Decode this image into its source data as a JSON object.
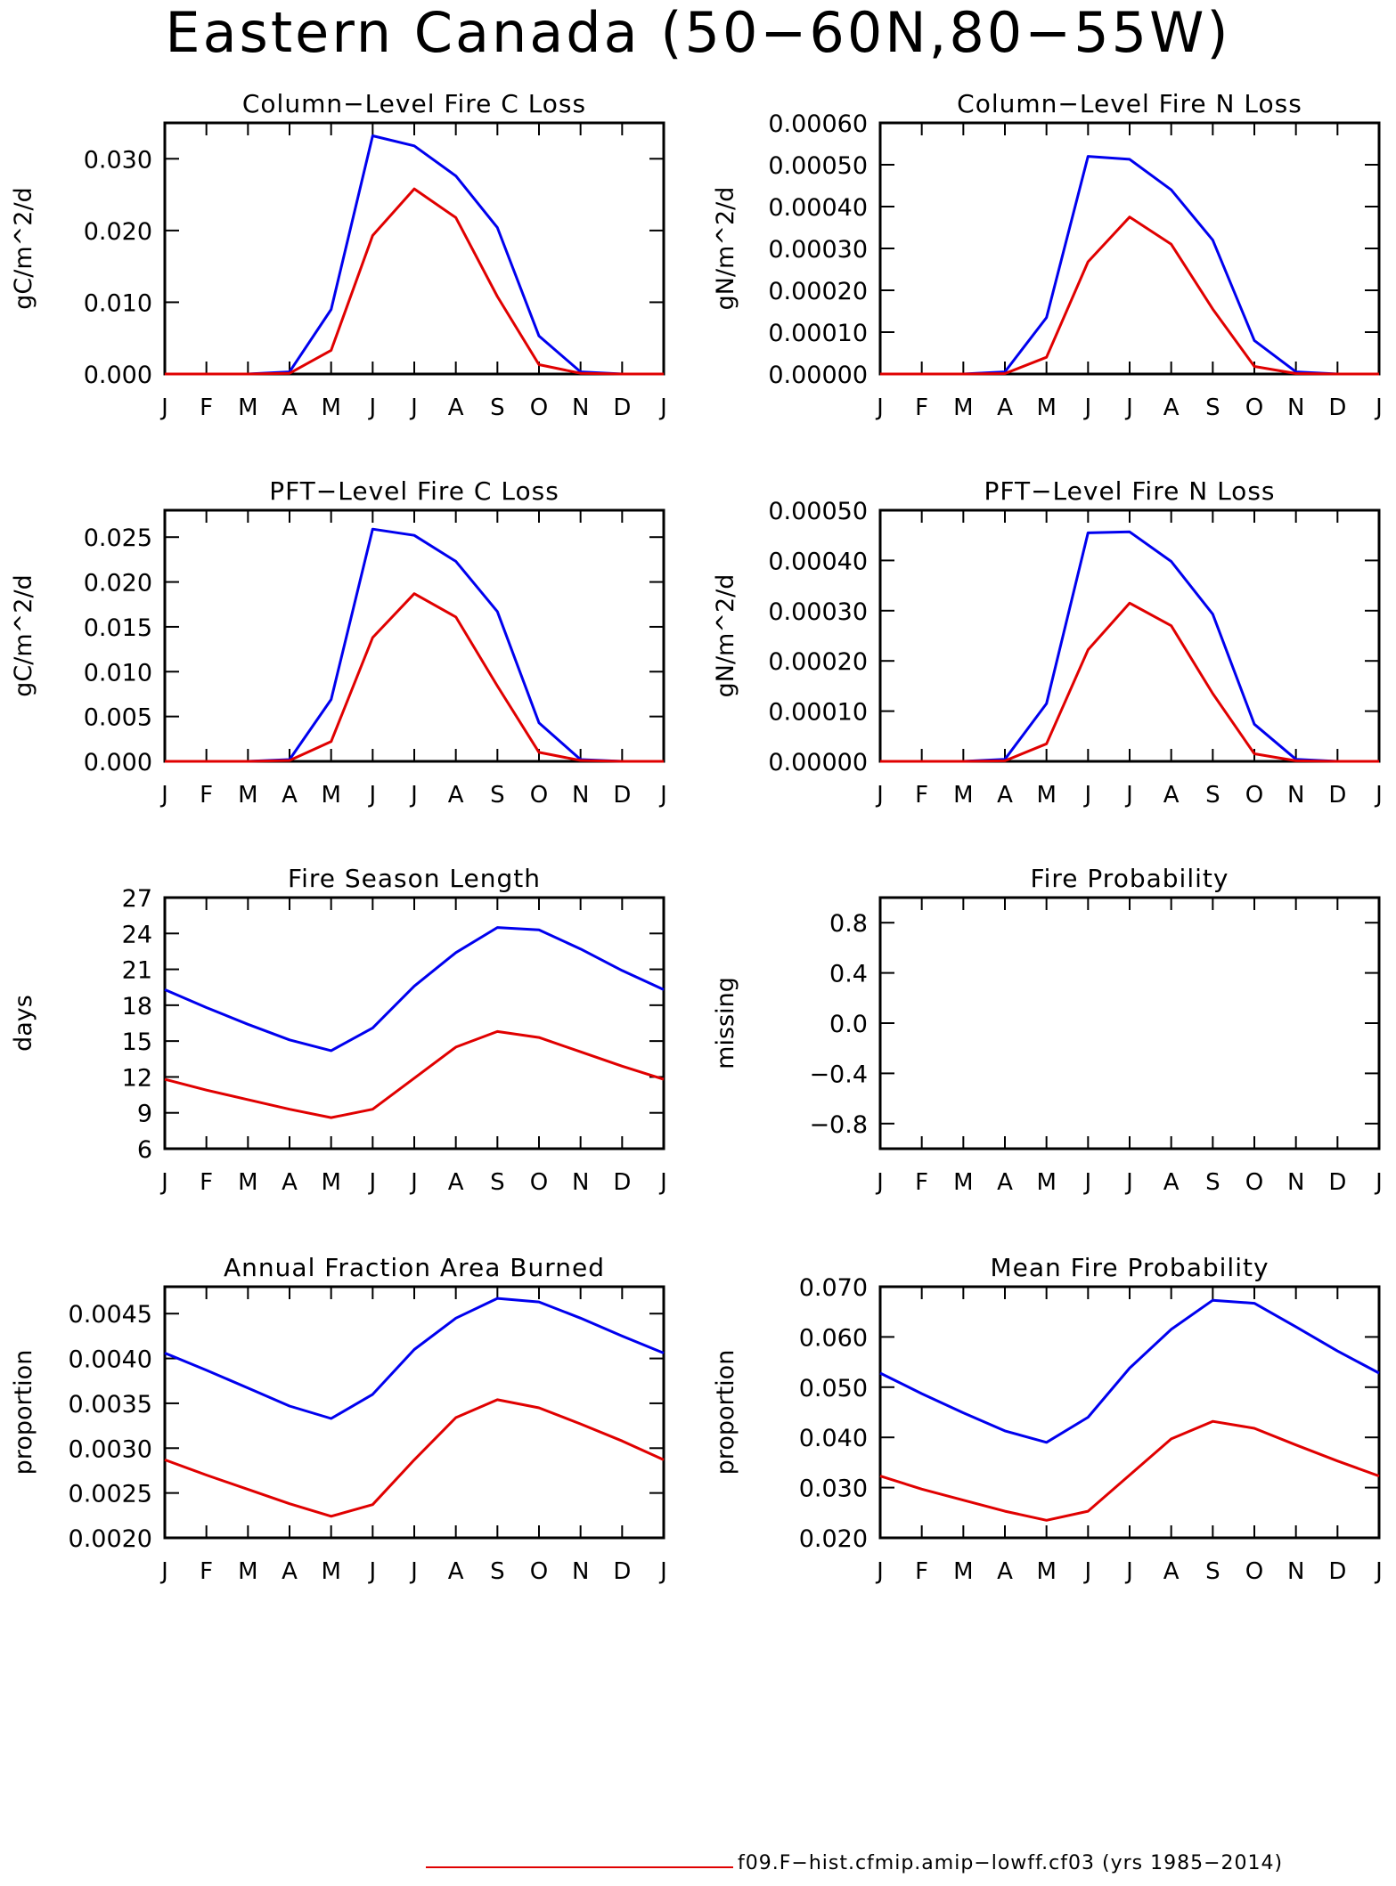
{
  "title": "Eastern Canada (50−60N,80−55W)",
  "legend": {
    "label": "f09.F−hist.cfmip.amip−lowff.cf03 (yrs 1985−2014)",
    "color": "#e00000"
  },
  "colors": {
    "series_blue": "#0000ee",
    "series_red": "#e00000"
  },
  "chart_data": [
    {
      "type": "line",
      "title": "Column−Level Fire C Loss",
      "ylabel": "gC/m^2/d",
      "categories": [
        "J",
        "F",
        "M",
        "A",
        "M",
        "J",
        "J",
        "A",
        "S",
        "O",
        "N",
        "D",
        "J"
      ],
      "ylim": [
        0,
        0.035
      ],
      "yticks": [
        "0.000",
        "0.010",
        "0.020",
        "0.030"
      ],
      "series": [
        {
          "values": [
            0,
            0,
            0,
            0.0003,
            0.009,
            0.0332,
            0.0318,
            0.0276,
            0.0204,
            0.0053,
            0.0003,
            0,
            0
          ]
        },
        {
          "values": [
            0,
            0,
            0,
            0.0001,
            0.0033,
            0.0193,
            0.0258,
            0.0218,
            0.0108,
            0.0013,
            0.0001,
            0,
            0
          ]
        }
      ]
    },
    {
      "type": "line",
      "title": "Column−Level Fire N Loss",
      "ylabel": "gN/m^2/d",
      "categories": [
        "J",
        "F",
        "M",
        "A",
        "M",
        "J",
        "J",
        "A",
        "S",
        "O",
        "N",
        "D",
        "J"
      ],
      "ylim": [
        0,
        0.0006
      ],
      "yticks": [
        "0.00000",
        "0.00010",
        "0.00020",
        "0.00030",
        "0.00040",
        "0.00050",
        "0.00060"
      ],
      "series": [
        {
          "values": [
            0,
            0,
            0,
            5e-06,
            0.000135,
            0.00052,
            0.000513,
            0.00044,
            0.00032,
            8e-05,
            5e-06,
            0,
            0
          ]
        },
        {
          "values": [
            0,
            0,
            0,
            1e-06,
            4e-05,
            0.000268,
            0.000375,
            0.00031,
            0.000155,
            1.8e-05,
            1e-06,
            0,
            0
          ]
        }
      ]
    },
    {
      "type": "line",
      "title": "PFT−Level Fire C Loss",
      "ylabel": "gC/m^2/d",
      "categories": [
        "J",
        "F",
        "M",
        "A",
        "M",
        "J",
        "J",
        "A",
        "S",
        "O",
        "N",
        "D",
        "J"
      ],
      "ylim": [
        0,
        0.028
      ],
      "yticks": [
        "0.000",
        "0.005",
        "0.010",
        "0.015",
        "0.020",
        "0.025"
      ],
      "series": [
        {
          "values": [
            0,
            0,
            0,
            0.0002,
            0.0069,
            0.0259,
            0.0252,
            0.0223,
            0.0167,
            0.0043,
            0.0002,
            0,
            0
          ]
        },
        {
          "values": [
            0,
            0,
            0,
            0.0001,
            0.0022,
            0.0138,
            0.0187,
            0.0161,
            0.0084,
            0.001,
            0.0001,
            0,
            0
          ]
        }
      ]
    },
    {
      "type": "line",
      "title": "PFT−Level Fire N Loss",
      "ylabel": "gN/m^2/d",
      "categories": [
        "J",
        "F",
        "M",
        "A",
        "M",
        "J",
        "J",
        "A",
        "S",
        "O",
        "N",
        "D",
        "J"
      ],
      "ylim": [
        0,
        0.0005
      ],
      "yticks": [
        "0.00000",
        "0.00010",
        "0.00020",
        "0.00030",
        "0.00040",
        "0.00050"
      ],
      "series": [
        {
          "values": [
            0,
            0,
            0,
            4e-06,
            0.000115,
            0.000455,
            0.000457,
            0.000398,
            0.000293,
            7.4e-05,
            4e-06,
            0,
            0
          ]
        },
        {
          "values": [
            0,
            0,
            0,
            1e-06,
            3.5e-05,
            0.000222,
            0.000315,
            0.00027,
            0.000135,
            1.5e-05,
            1e-06,
            0,
            0
          ]
        }
      ]
    },
    {
      "type": "line",
      "title": "Fire Season Length",
      "ylabel": "days",
      "categories": [
        "J",
        "F",
        "M",
        "A",
        "M",
        "J",
        "J",
        "A",
        "S",
        "O",
        "N",
        "D",
        "J"
      ],
      "ylim": [
        6,
        27
      ],
      "yticks": [
        "6",
        "9",
        "12",
        "15",
        "18",
        "21",
        "24",
        "27"
      ],
      "series": [
        {
          "values": [
            19.3,
            17.8,
            16.4,
            15.1,
            14.2,
            16.1,
            19.6,
            22.4,
            24.5,
            24.3,
            22.7,
            20.9,
            19.3
          ]
        },
        {
          "values": [
            11.8,
            10.9,
            10.1,
            9.3,
            8.6,
            9.3,
            11.9,
            14.5,
            15.8,
            15.3,
            14.1,
            12.9,
            11.8
          ]
        }
      ]
    },
    {
      "type": "line",
      "title": "Fire Probability",
      "ylabel": "missing",
      "categories": [
        "J",
        "F",
        "M",
        "A",
        "M",
        "J",
        "J",
        "A",
        "S",
        "O",
        "N",
        "D",
        "J"
      ],
      "ylim": [
        -1,
        1
      ],
      "yticks": [
        "−0.8",
        "−0.4",
        "0.0",
        "0.4",
        "0.8"
      ],
      "series": []
    },
    {
      "type": "line",
      "title": "Annual Fraction Area Burned",
      "ylabel": "proportion",
      "categories": [
        "J",
        "F",
        "M",
        "A",
        "M",
        "J",
        "J",
        "A",
        "S",
        "O",
        "N",
        "D",
        "J"
      ],
      "ylim": [
        0.002,
        0.0048
      ],
      "yticks": [
        "0.0020",
        "0.0025",
        "0.0030",
        "0.0035",
        "0.0040",
        "0.0045"
      ],
      "series": [
        {
          "values": [
            0.00406,
            0.00387,
            0.00367,
            0.00347,
            0.00333,
            0.0036,
            0.0041,
            0.00445,
            0.00467,
            0.00463,
            0.00445,
            0.00425,
            0.00406
          ]
        },
        {
          "values": [
            0.00287,
            0.0027,
            0.00254,
            0.00238,
            0.00224,
            0.00237,
            0.00287,
            0.00334,
            0.00354,
            0.00345,
            0.00327,
            0.00308,
            0.00287
          ]
        }
      ]
    },
    {
      "type": "line",
      "title": "Mean Fire Probability",
      "ylabel": "proportion",
      "categories": [
        "J",
        "F",
        "M",
        "A",
        "M",
        "J",
        "J",
        "A",
        "S",
        "O",
        "N",
        "D",
        "J"
      ],
      "ylim": [
        0.02,
        0.07
      ],
      "yticks": [
        "0.020",
        "0.030",
        "0.040",
        "0.050",
        "0.060",
        "0.070"
      ],
      "series": [
        {
          "values": [
            0.0528,
            0.0487,
            0.0449,
            0.0413,
            0.039,
            0.044,
            0.0538,
            0.0615,
            0.0673,
            0.0667,
            0.062,
            0.0572,
            0.0528
          ]
        },
        {
          "values": [
            0.0323,
            0.0297,
            0.0275,
            0.0253,
            0.0235,
            0.0253,
            0.0325,
            0.0397,
            0.0432,
            0.0418,
            0.0385,
            0.0353,
            0.0323
          ]
        }
      ]
    }
  ]
}
